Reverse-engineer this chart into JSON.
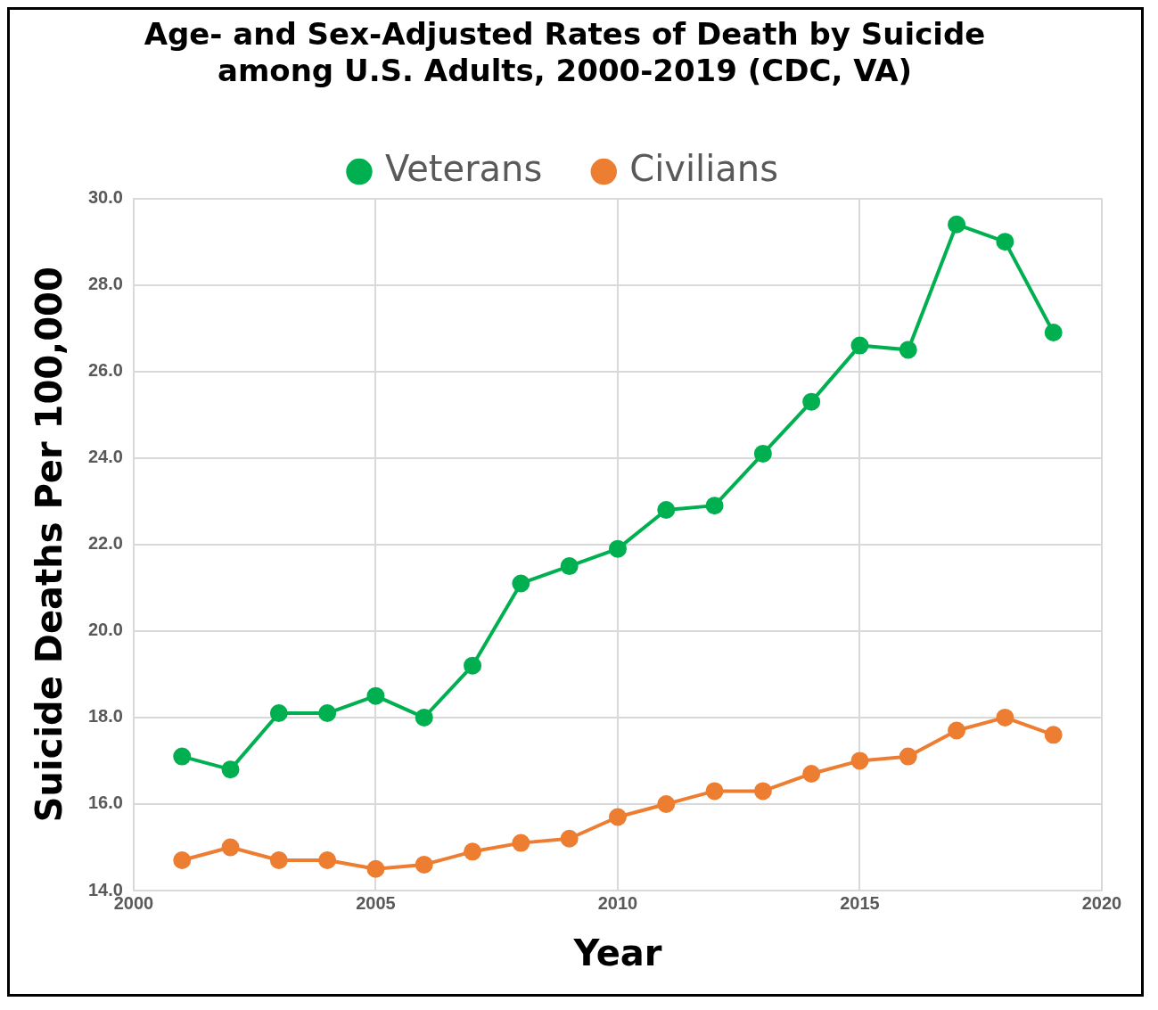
{
  "chart_data": {
    "type": "line",
    "title": [
      "Age- and Sex-Adjusted Rates of Death by Suicide",
      "among U.S. Adults, 2000-2019 (CDC, VA)"
    ],
    "xlabel": "Year",
    "ylabel": "Suicide Deaths Per 100,000",
    "x": [
      2001,
      2002,
      2003,
      2004,
      2005,
      2006,
      2007,
      2008,
      2009,
      2010,
      2011,
      2012,
      2013,
      2014,
      2015,
      2016,
      2017,
      2018,
      2019
    ],
    "series": [
      {
        "name": "Veterans",
        "color": "#00b050",
        "values": [
          17.1,
          16.8,
          18.1,
          18.1,
          18.5,
          18.0,
          19.2,
          21.1,
          21.5,
          21.9,
          22.8,
          22.9,
          24.1,
          25.3,
          26.6,
          26.5,
          29.4,
          29.0,
          26.9
        ]
      },
      {
        "name": "Civilians",
        "color": "#ed7d31",
        "values": [
          14.7,
          15.0,
          14.7,
          14.7,
          14.5,
          14.6,
          14.9,
          15.1,
          15.2,
          15.7,
          16.0,
          16.3,
          16.3,
          16.7,
          17.0,
          17.1,
          17.7,
          18.0,
          17.6
        ]
      }
    ],
    "xlim": [
      2000,
      2020
    ],
    "xticks": [
      2000,
      2005,
      2010,
      2015,
      2020
    ],
    "ylim": [
      14,
      30
    ],
    "yticks": [
      {
        "value": 14,
        "label": "14.0"
      },
      {
        "value": 16,
        "label": "16.0"
      },
      {
        "value": 18,
        "label": "18.0"
      },
      {
        "value": 20,
        "label": "20.0"
      },
      {
        "value": 22,
        "label": "22.0"
      },
      {
        "value": 24,
        "label": "24.0"
      },
      {
        "value": 26,
        "label": "26.0"
      },
      {
        "value": 28,
        "label": "28.0"
      },
      {
        "value": 30,
        "label": "30.0"
      }
    ],
    "grid": true,
    "legend": "top",
    "marker": "circle",
    "line_style": "solid"
  }
}
